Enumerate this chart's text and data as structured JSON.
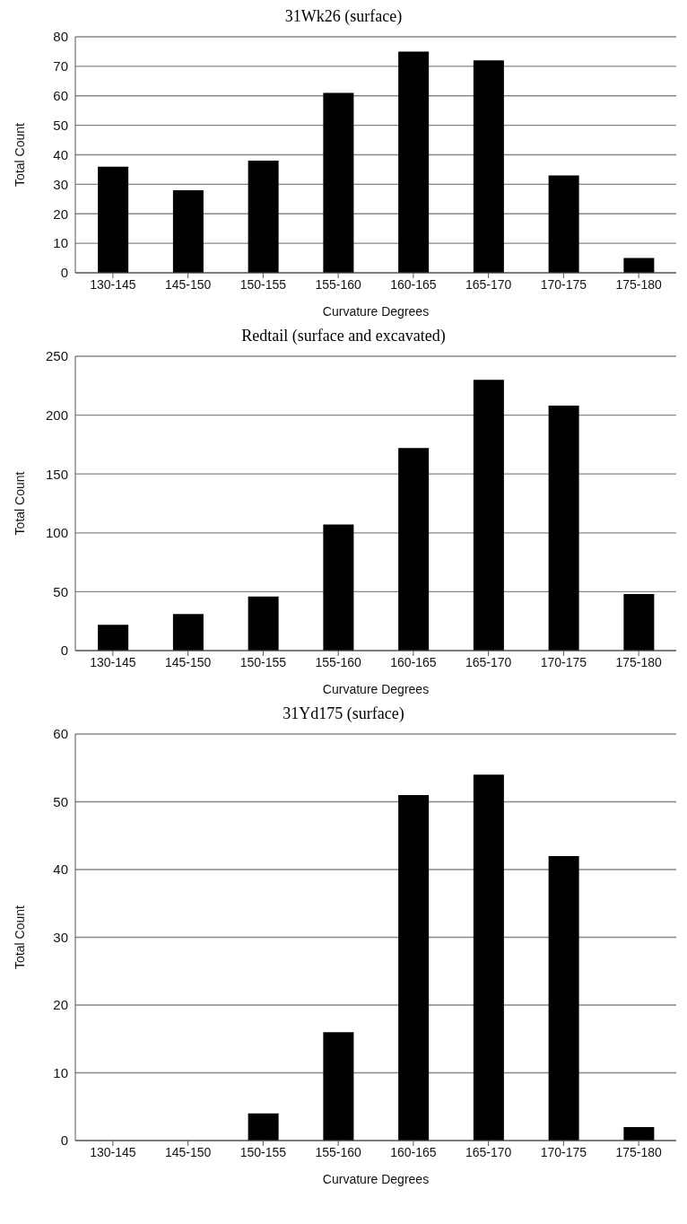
{
  "chart_data": [
    {
      "type": "bar",
      "title": "31Wk26 (surface)",
      "xlabel": "Curvature Degrees",
      "ylabel": "Total Count",
      "categories": [
        "130-145",
        "145-150",
        "150-155",
        "155-160",
        "160-165",
        "165-170",
        "170-175",
        "175-180"
      ],
      "values": [
        36,
        28,
        38,
        61,
        75,
        72,
        33,
        5
      ],
      "color": "#000000",
      "ylim": [
        0,
        80
      ],
      "yticks": [
        0,
        10,
        20,
        30,
        40,
        50,
        60,
        70,
        80
      ],
      "grid": "y"
    },
    {
      "type": "bar",
      "title": "Redtail (surface and excavated)",
      "xlabel": "Curvature Degrees",
      "ylabel": "Total Count",
      "categories": [
        "130-145",
        "145-150",
        "150-155",
        "155-160",
        "160-165",
        "165-170",
        "170-175",
        "175-180"
      ],
      "values": [
        22,
        31,
        46,
        107,
        172,
        230,
        208,
        48
      ],
      "color": "#000000",
      "ylim": [
        0,
        250
      ],
      "yticks": [
        0,
        50,
        100,
        150,
        200,
        250
      ],
      "grid": "y"
    },
    {
      "type": "bar",
      "title": "31Yd175 (surface)",
      "xlabel": "Curvature Degrees",
      "ylabel": "Total Count",
      "categories": [
        "130-145",
        "145-150",
        "150-155",
        "155-160",
        "160-165",
        "165-170",
        "170-175",
        "175-180"
      ],
      "values": [
        0,
        0,
        4,
        16,
        51,
        54,
        42,
        2
      ],
      "color": "#000000",
      "ylim": [
        0,
        60
      ],
      "yticks": [
        0,
        10,
        20,
        30,
        40,
        50,
        60
      ],
      "grid": "y"
    }
  ]
}
